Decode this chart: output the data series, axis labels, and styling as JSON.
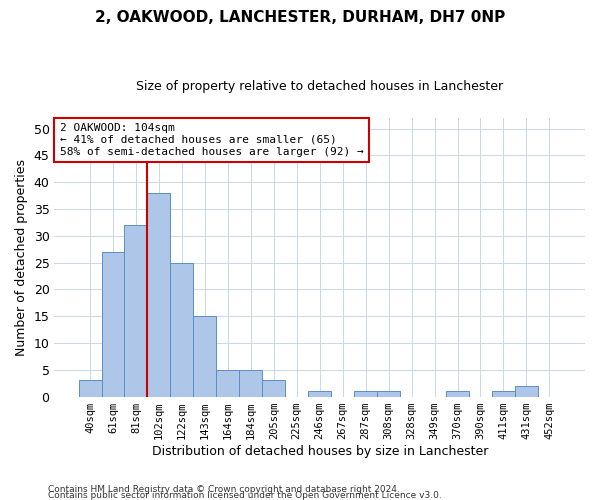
{
  "title1": "2, OAKWOOD, LANCHESTER, DURHAM, DH7 0NP",
  "title2": "Size of property relative to detached houses in Lanchester",
  "xlabel": "Distribution of detached houses by size in Lanchester",
  "ylabel": "Number of detached properties",
  "categories": [
    "40sqm",
    "61sqm",
    "81sqm",
    "102sqm",
    "122sqm",
    "143sqm",
    "164sqm",
    "184sqm",
    "205sqm",
    "225sqm",
    "246sqm",
    "267sqm",
    "287sqm",
    "308sqm",
    "328sqm",
    "349sqm",
    "370sqm",
    "390sqm",
    "411sqm",
    "431sqm",
    "452sqm"
  ],
  "values": [
    3,
    27,
    32,
    38,
    25,
    15,
    5,
    5,
    3,
    0,
    1,
    0,
    1,
    1,
    0,
    0,
    1,
    0,
    1,
    2,
    0
  ],
  "bar_color": "#aec6e8",
  "bar_edge_color": "#5a8fc2",
  "vline_color": "#cc0000",
  "annotation_text": "2 OAKWOOD: 104sqm\n← 41% of detached houses are smaller (65)\n58% of semi-detached houses are larger (92) →",
  "annotation_box_color": "#ffffff",
  "annotation_box_edge": "#cc0000",
  "ylim": [
    0,
    52
  ],
  "yticks": [
    0,
    5,
    10,
    15,
    20,
    25,
    30,
    35,
    40,
    45,
    50
  ],
  "footer1": "Contains HM Land Registry data © Crown copyright and database right 2024.",
  "footer2": "Contains public sector information licensed under the Open Government Licence v3.0.",
  "bg_color": "#ffffff",
  "grid_color": "#c8d8e8"
}
